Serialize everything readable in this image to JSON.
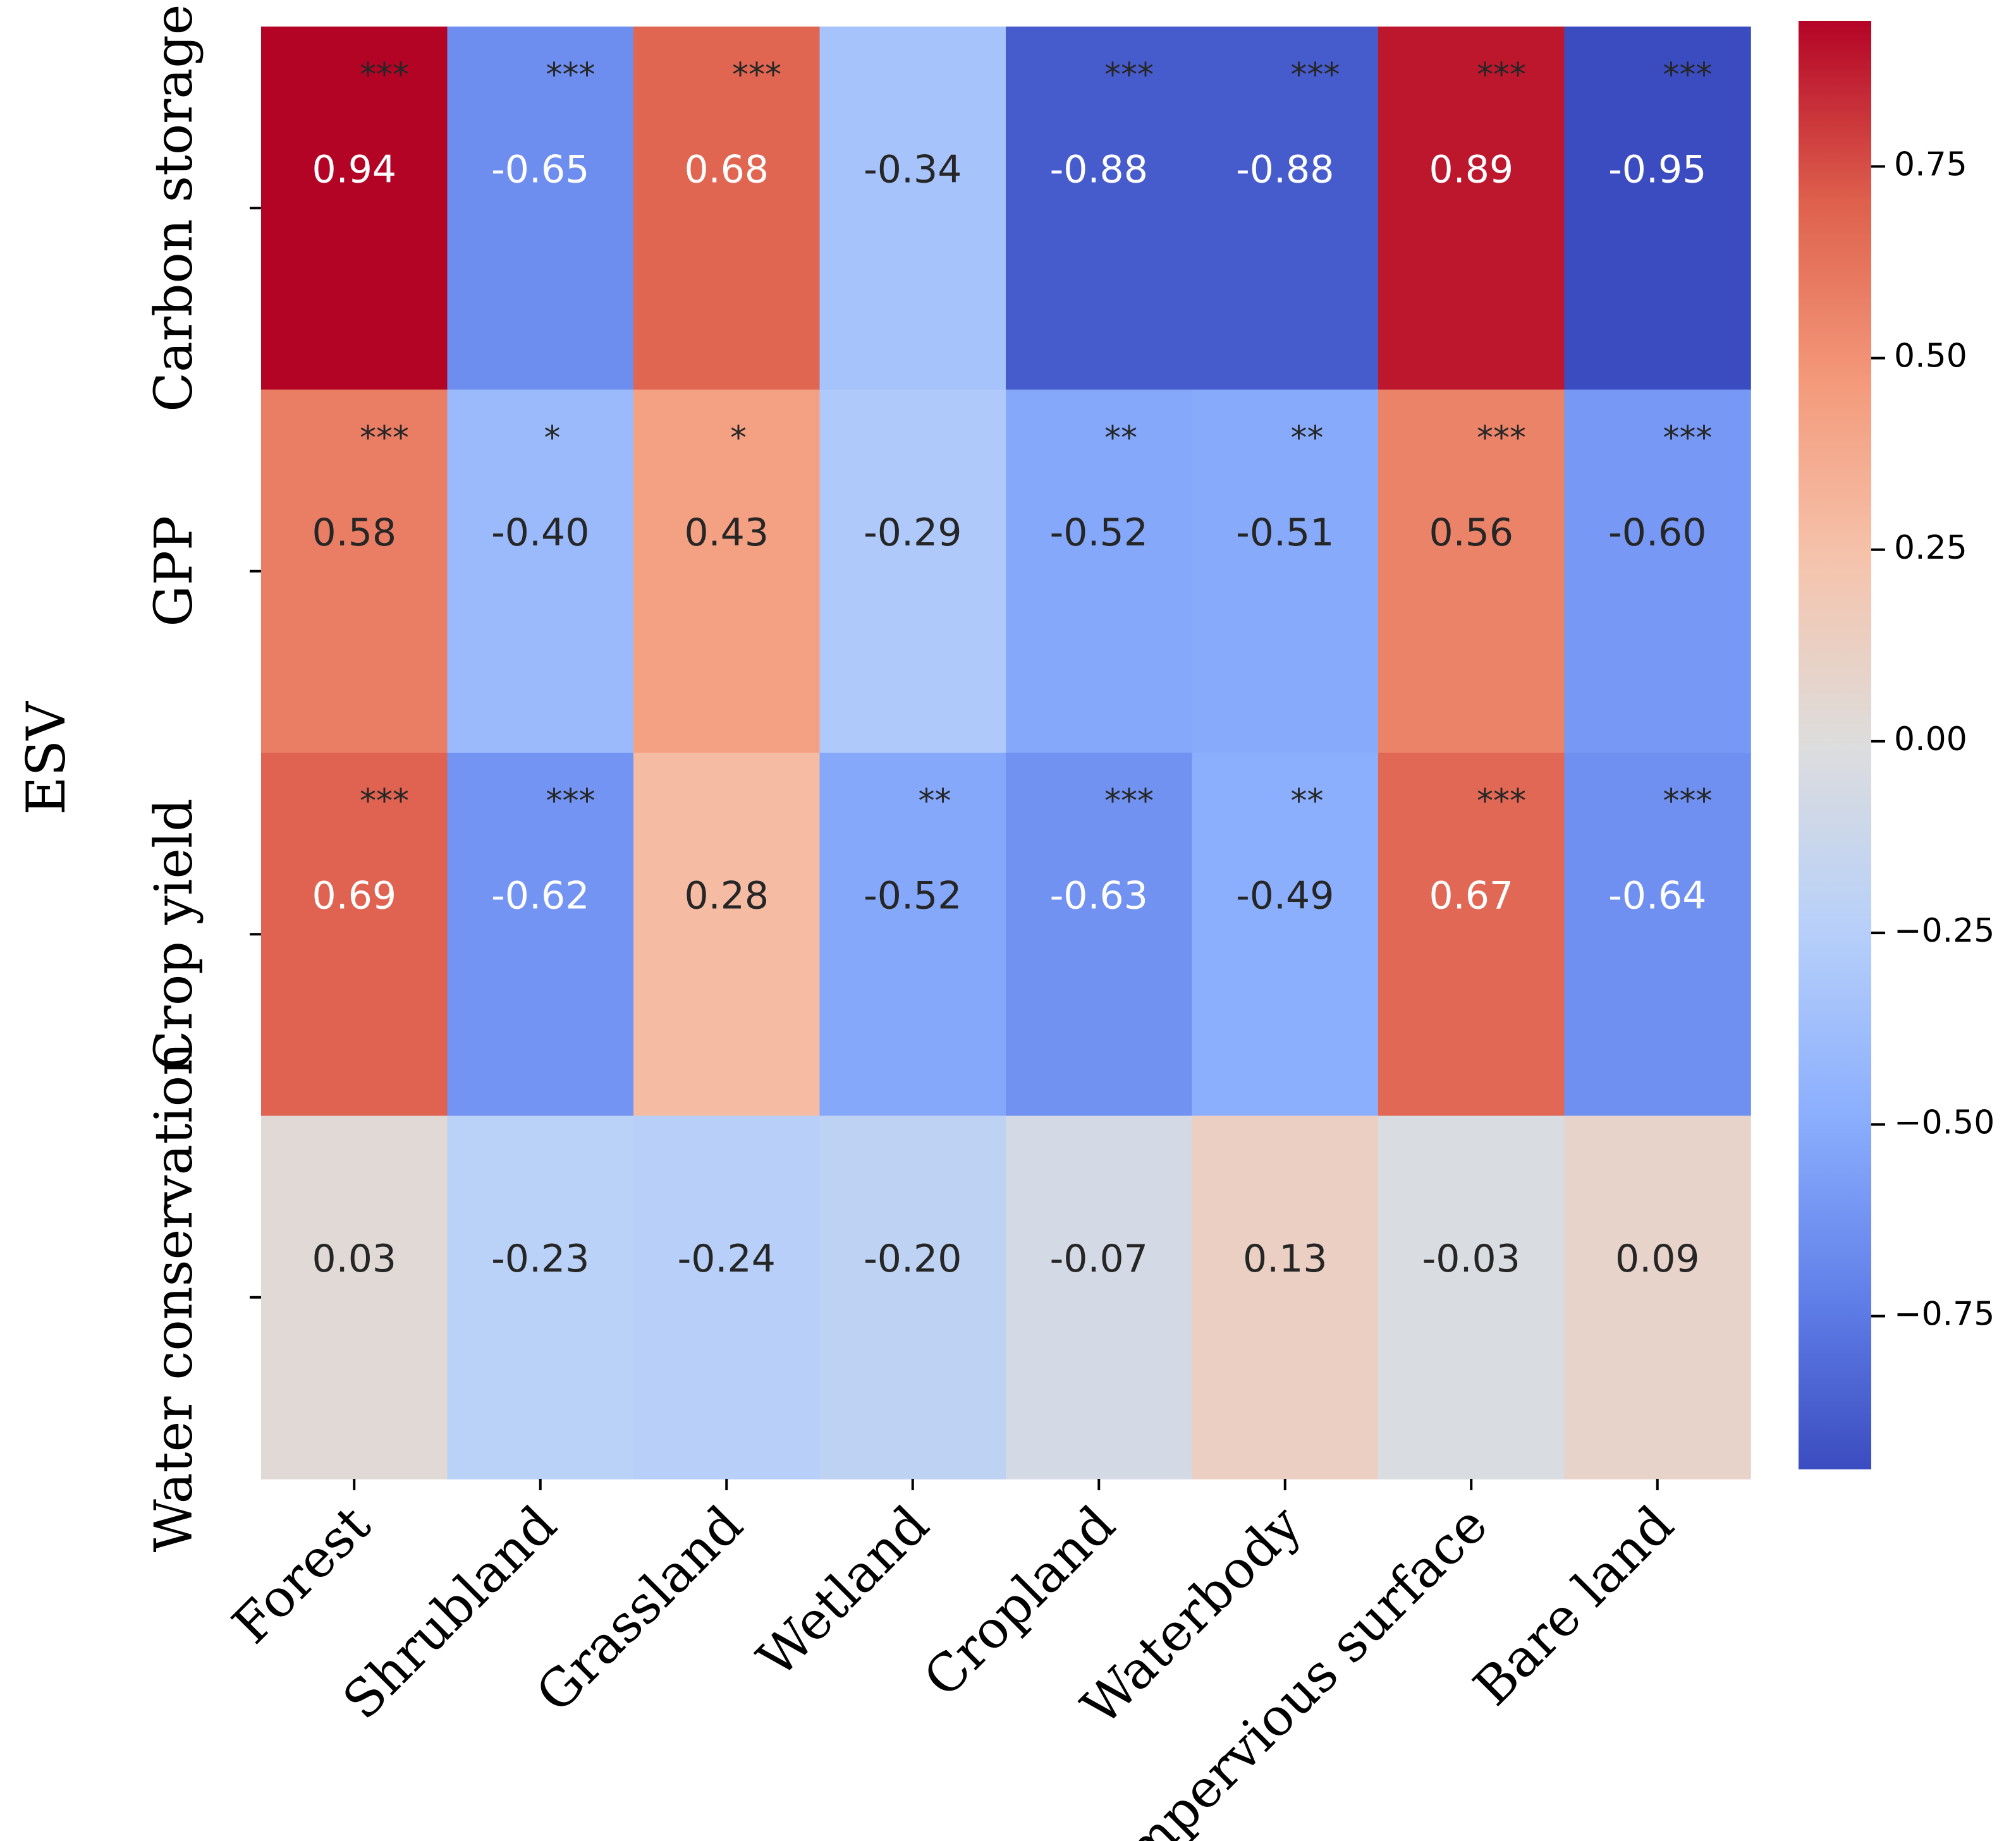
{
  "chart_data": {
    "type": "heatmap",
    "title": "",
    "ylabel": "ESV",
    "xlabel": "",
    "rows": [
      "Carbon storage",
      "GPP",
      "Crop yield",
      "Water conservation"
    ],
    "columns": [
      "Forest",
      "Shrubland",
      "Grassland",
      "Wetland",
      "Cropland",
      "Waterbody",
      "Impervious surface",
      "Bare land"
    ],
    "values": [
      [
        0.94,
        -0.65,
        0.68,
        -0.34,
        -0.88,
        -0.88,
        0.89,
        -0.95
      ],
      [
        0.58,
        -0.4,
        0.43,
        -0.29,
        -0.52,
        -0.51,
        0.56,
        -0.6
      ],
      [
        0.69,
        -0.62,
        0.28,
        -0.52,
        -0.63,
        -0.49,
        0.67,
        -0.64
      ],
      [
        0.03,
        -0.23,
        -0.24,
        -0.2,
        -0.07,
        0.13,
        -0.03,
        0.09
      ]
    ],
    "value_labels": [
      [
        "0.94",
        "-0.65",
        "0.68",
        "-0.34",
        "-0.88",
        "-0.88",
        "0.89",
        "-0.95"
      ],
      [
        "0.58",
        "-0.40",
        "0.43",
        "-0.29",
        "-0.52",
        "-0.51",
        "0.56",
        "-0.60"
      ],
      [
        "0.69",
        "-0.62",
        "0.28",
        "-0.52",
        "-0.63",
        "-0.49",
        "0.67",
        "-0.64"
      ],
      [
        "0.03",
        "-0.23",
        "-0.24",
        "-0.20",
        "-0.07",
        "0.13",
        "-0.03",
        "0.09"
      ]
    ],
    "significance": [
      [
        "***",
        "***",
        "***",
        "",
        "***",
        "***",
        "***",
        "***"
      ],
      [
        "***",
        "*",
        "*",
        "",
        "**",
        "**",
        "***",
        "***"
      ],
      [
        "***",
        "***",
        "",
        "**",
        "***",
        "**",
        "***",
        "***"
      ],
      [
        "",
        "",
        "",
        "",
        "",
        "",
        "",
        ""
      ]
    ],
    "colormap": "coolwarm",
    "vmin": -0.95,
    "vmax": 0.94,
    "colorbar_ticks": [
      0.75,
      0.5,
      0.25,
      0.0,
      -0.25,
      -0.5,
      -0.75
    ],
    "colorbar_tick_labels": [
      "0.75",
      "0.50",
      "0.25",
      "0.00",
      "−0.25",
      "−0.50",
      "−0.75"
    ]
  }
}
